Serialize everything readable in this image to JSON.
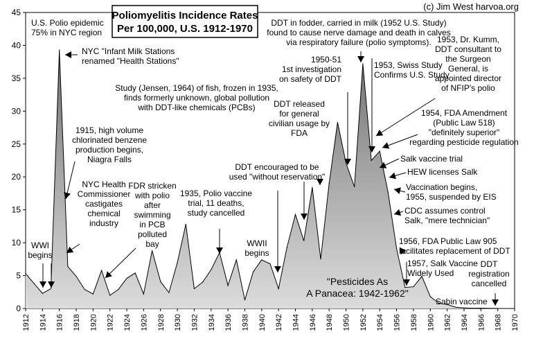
{
  "credit": "(c) Jim West  harvoa.org",
  "chart_data": {
    "type": "area",
    "title": [
      "Poliomyelitis Incidence Rates",
      "Per 100,000, U.S. 1912-1970"
    ],
    "xlabel": "",
    "ylabel": "",
    "xlim": [
      1912,
      1970
    ],
    "ylim": [
      0,
      45
    ],
    "x_ticks": [
      1912,
      1914,
      1916,
      1918,
      1920,
      1922,
      1924,
      1926,
      1928,
      1930,
      1932,
      1934,
      1936,
      1938,
      1940,
      1942,
      1944,
      1946,
      1948,
      1950,
      1952,
      1954,
      1956,
      1958,
      1960,
      1962,
      1964,
      1966,
      1968,
      1970
    ],
    "y_ticks": [
      0,
      5,
      10,
      15,
      20,
      25,
      30,
      35,
      40,
      45
    ],
    "grid": false,
    "x": [
      1912,
      1913,
      1914,
      1915,
      1916,
      1917,
      1918,
      1919,
      1920,
      1921,
      1922,
      1923,
      1924,
      1925,
      1926,
      1927,
      1928,
      1929,
      1930,
      1931,
      1932,
      1933,
      1934,
      1935,
      1936,
      1937,
      1938,
      1939,
      1940,
      1941,
      1942,
      1943,
      1944,
      1945,
      1946,
      1947,
      1948,
      1949,
      1950,
      1951,
      1952,
      1953,
      1954,
      1955,
      1956,
      1957,
      1958,
      1959,
      1960,
      1961,
      1962,
      1963,
      1964,
      1965,
      1966,
      1967,
      1968
    ],
    "values": [
      5.3,
      3.8,
      2.3,
      3.0,
      39.3,
      6.4,
      4.9,
      2.9,
      2.2,
      5.8,
      2.0,
      2.9,
      4.6,
      5.4,
      2.2,
      8.8,
      4.1,
      2.4,
      7.0,
      12.8,
      3.0,
      4.0,
      5.9,
      8.5,
      3.5,
      7.4,
      1.3,
      5.6,
      7.4,
      6.8,
      3.0,
      9.3,
      14.3,
      10.3,
      18.4,
      7.5,
      19.0,
      28.3,
      22.1,
      18.5,
      37.2,
      22.5,
      23.9,
      17.6,
      9.1,
      3.2,
      3.3,
      4.9,
      1.8,
      0.8,
      0.6,
      0.2,
      0.1,
      0.04,
      0.05,
      0.02,
      0.01
    ],
    "annotations": [
      {
        "text": [
          "U.S. Polio epidemic",
          "75% in NYC region"
        ]
      },
      {
        "text": [
          "NYC \"Infant Milk Stations",
          "renamed \"Health Stations\""
        ]
      },
      {
        "text": [
          "WWI",
          "begins"
        ]
      },
      {
        "text": [
          "1915, high volume",
          "chlorinated benzene",
          "production begins,",
          "Niagra Falls"
        ]
      },
      {
        "text": [
          "NYC Health",
          "Commissioner",
          "castigates",
          "chemical",
          "industry"
        ]
      },
      {
        "text": [
          "Study (Jensen, 1964) of fish, frozen in 1935,",
          "finds formerly unknown, global pollution",
          "with DDT-like chemicals (PCBs)"
        ]
      },
      {
        "text": [
          "FDR stricken",
          "with polio",
          "after",
          "swimming",
          "in PCB",
          "polluted",
          "bay"
        ]
      },
      {
        "text": [
          "1935, Polio vaccine",
          "trial, 11 deaths,",
          "study cancelled"
        ]
      },
      {
        "text": [
          "WWII",
          "begins"
        ]
      },
      {
        "text": [
          "DDT encouraged to be",
          "used \"without reservation\""
        ]
      },
      {
        "text": [
          "DDT released",
          "for general",
          "civilian usage by",
          "FDA"
        ]
      },
      {
        "text": [
          "1950-51",
          "1st investigation",
          "on safety of DDT"
        ]
      },
      {
        "text": [
          "DDT in fodder, carried in milk (1952 U.S. Study)",
          "found to cause nerve damage and death in calves",
          "via respiratory failure (polio symptoms)."
        ]
      },
      {
        "text": [
          "1953, Swiss Study",
          "Confirms U.S. Study"
        ]
      },
      {
        "text": [
          "1953, Dr. Kumm,",
          "DDT consultant to",
          "the Surgeon",
          "General, is",
          "appointed director",
          "of NFIP's polio"
        ]
      },
      {
        "text": [
          "1954, FDA Amendment",
          "(Public Law 518)",
          "\"definitely superior\"",
          "regarding pesticide regulation"
        ]
      },
      {
        "text": [
          "Salk vaccine trial"
        ]
      },
      {
        "text": [
          "HEW licenses Salk"
        ]
      },
      {
        "text": [
          "Vaccination begins,",
          "1955, suspended by EIS"
        ]
      },
      {
        "text": [
          "CDC assumes control",
          "Salk, \"mere technician\""
        ]
      },
      {
        "text": [
          "1956, FDA Public Law 905",
          "facilitates replacement of DDT"
        ]
      },
      {
        "text": [
          "1957, Salk Vaccine",
          "Widely Used"
        ]
      },
      {
        "text": [
          "DDT",
          "registration",
          "cancelled"
        ]
      },
      {
        "text": [
          "Sabin vaccine"
        ]
      },
      {
        "text": [
          "\"Pesticides As",
          "A Panacea: 1942-1962\""
        ]
      }
    ]
  }
}
